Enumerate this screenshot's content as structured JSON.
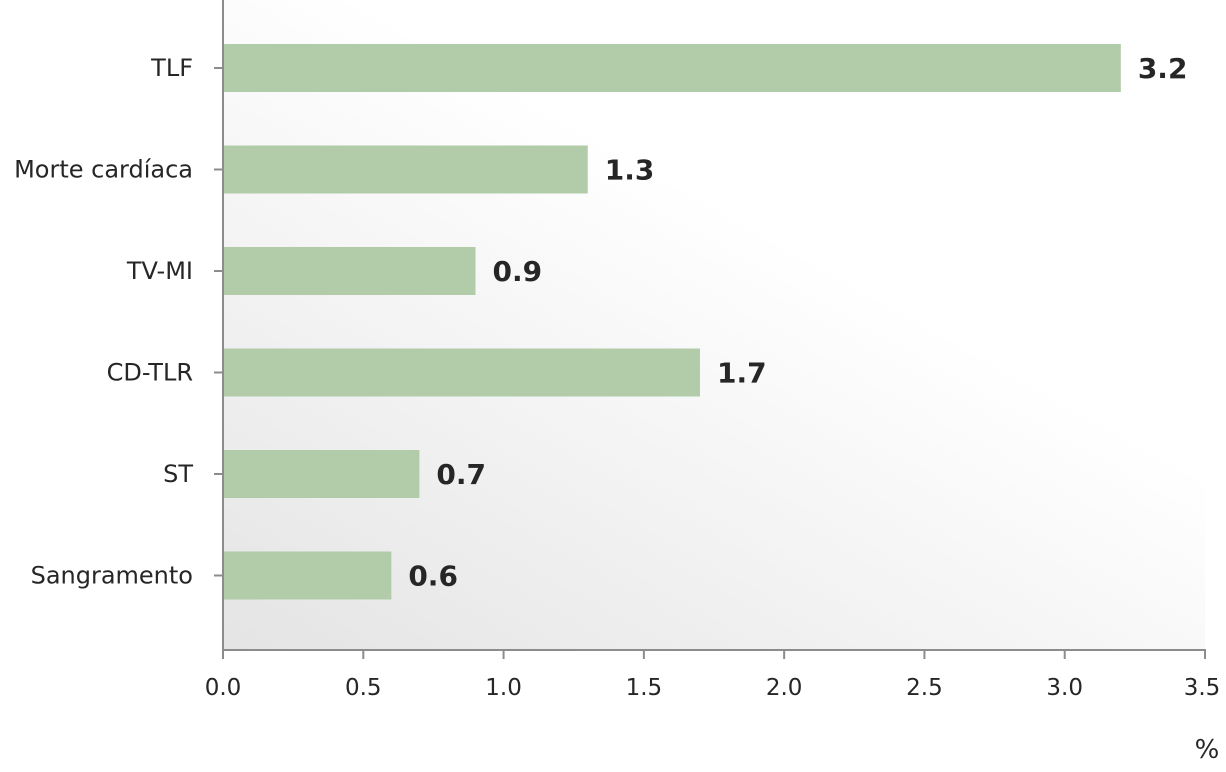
{
  "colors": {
    "bar": "#b2ccaa",
    "text": "#262626",
    "axis": "#8c8c8c",
    "plot_bg_shade": "#e4e4e4"
  },
  "chart_data": {
    "type": "bar",
    "orientation": "horizontal",
    "categories": [
      "TLF",
      "Morte cardíaca",
      "TV-MI",
      "CD-TLR",
      "ST",
      "Sangramento"
    ],
    "values": [
      3.2,
      1.3,
      0.9,
      1.7,
      0.7,
      0.6
    ],
    "value_labels": [
      "3.2",
      "1.3",
      "0.9",
      "1.7",
      "0.7",
      "0.6"
    ],
    "xlim": [
      0,
      3.5
    ],
    "xticks": [
      0.0,
      0.5,
      1.0,
      1.5,
      2.0,
      2.5,
      3.0,
      3.5
    ],
    "xtick_labels": [
      "0.0",
      "0.5",
      "1.0",
      "1.5",
      "2.0",
      "2.5",
      "3.0",
      "3.5"
    ],
    "xlabel": "%",
    "title": "",
    "grid": false,
    "legend": "none"
  }
}
